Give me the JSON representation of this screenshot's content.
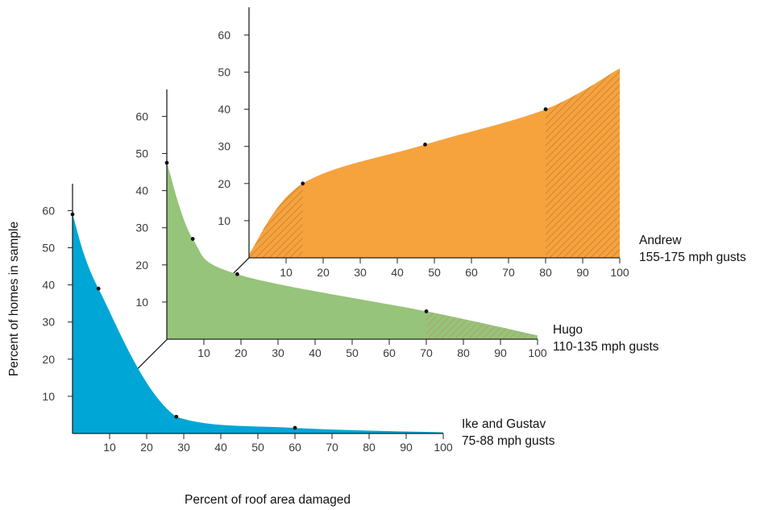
{
  "chart_data": {
    "type": "area",
    "projection": "3D stacked panels (oblique)",
    "xlabel": "Percent of roof area damaged",
    "ylabel": "Percent of homes in sample",
    "x_ticks": [
      10,
      20,
      30,
      40,
      50,
      60,
      70,
      80,
      90,
      100
    ],
    "y_ticks": [
      10,
      20,
      30,
      40,
      50,
      60
    ],
    "xlim": [
      0,
      100
    ],
    "ylim": [
      0,
      60
    ],
    "grid": false,
    "series": [
      {
        "name": "Ike and Gustav",
        "subtitle": "75-88 mph gusts",
        "color": "#00a6d6",
        "x": [
          0,
          7,
          28,
          60,
          100
        ],
        "y": [
          59,
          39,
          4.5,
          1.5,
          0.3
        ],
        "marked_points": [
          [
            0,
            59
          ],
          [
            7,
            39
          ],
          [
            28,
            4.5
          ],
          [
            60,
            1.5
          ]
        ],
        "hatched_range": null
      },
      {
        "name": "Hugo",
        "subtitle": "110-135 mph gusts",
        "color": "#95c47a",
        "x": [
          0,
          7,
          19,
          70,
          100
        ],
        "y": [
          47.5,
          27,
          17.5,
          7.5,
          1
        ],
        "marked_points": [
          [
            0,
            47.5
          ],
          [
            7,
            27
          ],
          [
            19,
            17.5
          ],
          [
            70,
            7.5
          ]
        ],
        "hatched_range": [
          70,
          100
        ]
      },
      {
        "name": "Andrew",
        "subtitle": "155-175 mph gusts",
        "color": "#f6a33d",
        "x": [
          0,
          14.5,
          47.5,
          80,
          100
        ],
        "y": [
          1,
          20,
          30.5,
          40,
          51
        ],
        "marked_points": [
          [
            14.5,
            20
          ],
          [
            47.5,
            30.5
          ],
          [
            80,
            40
          ]
        ],
        "hatched_range": [
          [
            0,
            14.5
          ],
          [
            80,
            100
          ]
        ]
      }
    ]
  }
}
